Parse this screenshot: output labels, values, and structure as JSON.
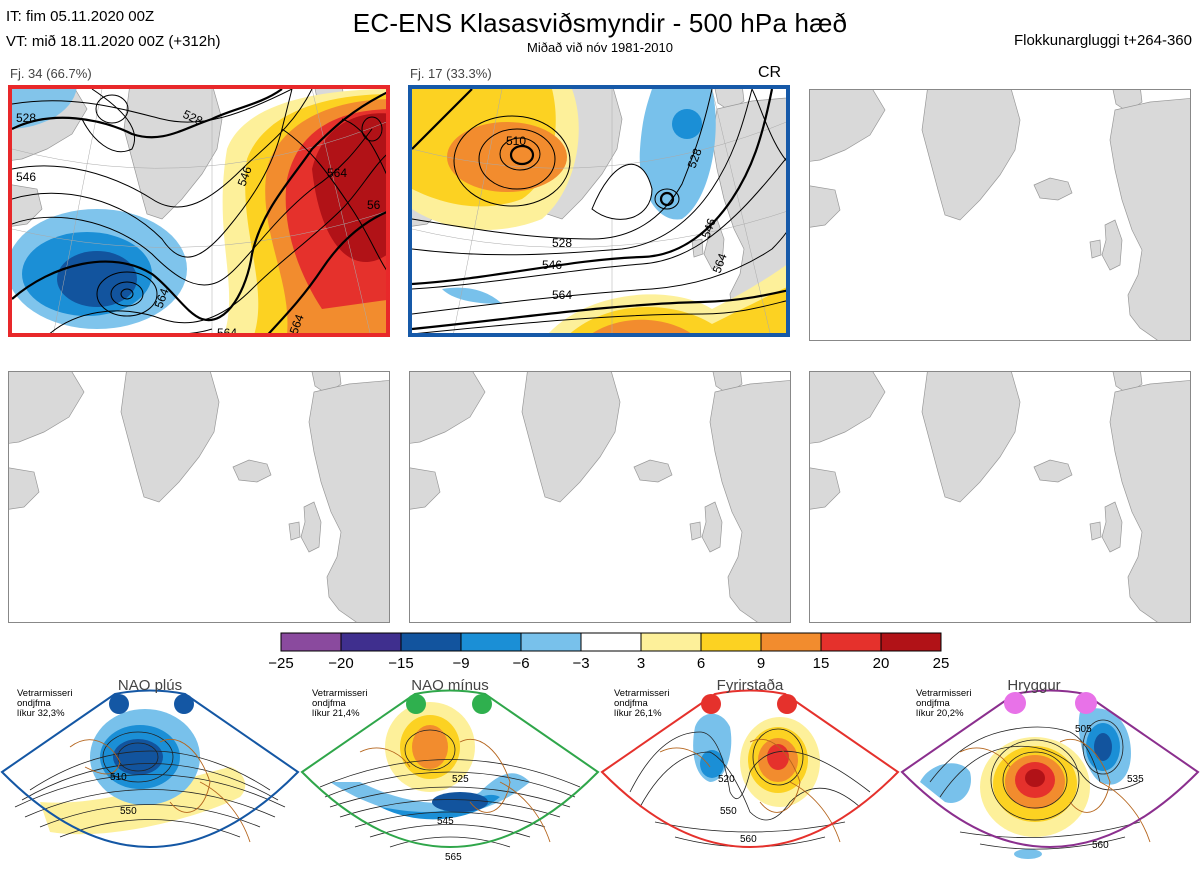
{
  "header": {
    "issue_time": "IT: fim 05.11.2020 00Z",
    "valid_time": "VT: mið 18.11.2020 00Z  (+312h)",
    "title": "EC-ENS Klasasviðsmyndir - 500 hPa hæð",
    "subtitle": "Miðað við nóv 1981-2010",
    "cluster_window": "Flokkunargluggi t+264-360"
  },
  "clusters": [
    {
      "label": "Fj. 34 (66.7%)",
      "frame_color": "#e8282a",
      "tag": ""
    },
    {
      "label": "Fj. 17 (33.3%)",
      "frame_color": "#1659a8",
      "tag": "CR"
    }
  ],
  "contour_labels": {
    "panel1": [
      "528",
      "546",
      "564",
      "528",
      "546",
      "564",
      "564",
      "564",
      "56"
    ],
    "panel2": [
      "510",
      "528",
      "528",
      "546",
      "564",
      "546",
      "564"
    ]
  },
  "colorbar": {
    "ticks": [
      "−25",
      "−20",
      "−15",
      "−9",
      "−6",
      "−3",
      "3",
      "6",
      "9",
      "15",
      "20",
      "25"
    ],
    "colors": [
      "#8a4a9e",
      "#3f2f8e",
      "#12549e",
      "#1b8fd6",
      "#78c1eb",
      "#ffffff",
      "#fdf09a",
      "#fcd222",
      "#f28c2e",
      "#e5312c",
      "#b11217"
    ]
  },
  "regimes": [
    {
      "name": "NAO plús",
      "stats_line1": "Vetrarmisseri",
      "stats_line2": "ondjfma",
      "stats_line3": "líkur 32,3%",
      "color": "#1457a4",
      "dot_color": "#1457a4",
      "labels": [
        "510",
        "550"
      ]
    },
    {
      "name": "NAO mínus",
      "stats_line1": "Vetrarmisseri",
      "stats_line2": "ondjfma",
      "stats_line3": "líkur 21,4%",
      "color": "#2fa64a",
      "dot_color": "#2fb04e",
      "labels": [
        "525",
        "545",
        "565"
      ]
    },
    {
      "name": "Fyrirstaða",
      "stats_line1": "Vetrarmisseri",
      "stats_line2": "ondjfma",
      "stats_line3": "líkur 26,1%",
      "color": "#e5312c",
      "dot_color": "#e5312c",
      "labels": [
        "520",
        "550",
        "560"
      ]
    },
    {
      "name": "Hryggur",
      "stats_line1": "Vetrarmisseri",
      "stats_line2": "ondjfma",
      "stats_line3": "líkur 20,2%",
      "color": "#8b2f8e",
      "dot_color": "#e872e8",
      "labels": [
        "505",
        "535",
        "560"
      ]
    }
  ]
}
